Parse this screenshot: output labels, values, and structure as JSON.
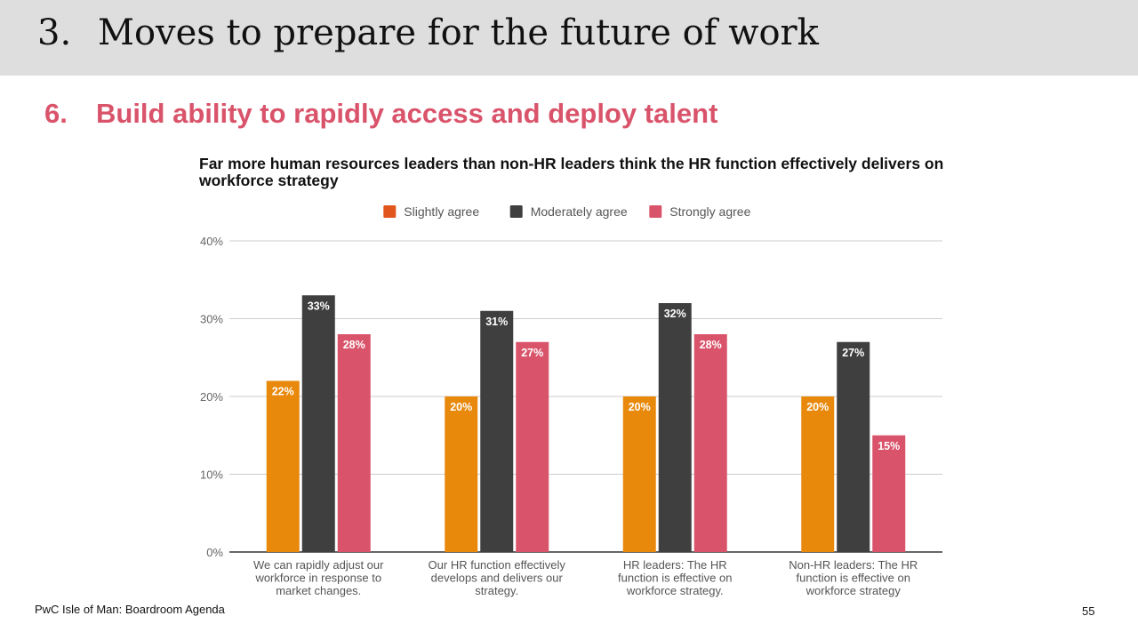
{
  "header": {
    "number": "3.",
    "title": "Moves to prepare for the future of work"
  },
  "subheader": {
    "number": "6.",
    "title": "Build ability to rapidly access and deploy talent"
  },
  "footer": {
    "left": "PwC Isle of Man: Boardroom Agenda",
    "page_number": "55"
  },
  "chart_data": {
    "type": "bar",
    "title": "Far more human resources leaders than non-HR leaders think the HR function effectively delivers on workforce strategy",
    "categories": [
      "We can rapidly adjust our workforce in response to market changes.",
      "Our HR function effectively develops and delivers our strategy.",
      "HR leaders: The HR function is effective on workforce strategy.",
      "Non-HR leaders: The HR function is effective on workforce strategy"
    ],
    "category_lines": [
      [
        "We can rapidly adjust our",
        "workforce in response to",
        "market changes."
      ],
      [
        "Our HR function effectively",
        "develops and delivers our",
        "strategy."
      ],
      [
        "HR leaders: The HR",
        "function is effective on",
        "workforce strategy."
      ],
      [
        "Non-HR leaders: The HR",
        "function is effective on",
        "workforce strategy"
      ]
    ],
    "series": [
      {
        "name": "Slightly agree",
        "color": "#e8890c",
        "legend_color": "#e0561c",
        "values": [
          22,
          20,
          20,
          20
        ]
      },
      {
        "name": "Moderately agree",
        "color": "#3f3f3f",
        "legend_color": "#3f3f3f",
        "values": [
          33,
          31,
          32,
          27
        ]
      },
      {
        "name": "Strongly agree",
        "color": "#d9546b",
        "legend_color": "#d9546b",
        "values": [
          28,
          27,
          28,
          15
        ]
      }
    ],
    "data_labels": [
      [
        "22%",
        "20%",
        "20%",
        "20%"
      ],
      [
        "33%",
        "31%",
        "32%",
        "27%"
      ],
      [
        "28%",
        "27%",
        "28%",
        "15%"
      ]
    ],
    "yticks": [
      0,
      10,
      20,
      30,
      40
    ],
    "ytick_labels": [
      "0%",
      "10%",
      "20%",
      "30%",
      "40%"
    ],
    "ylim": [
      0,
      40
    ],
    "xlabel": "",
    "ylabel": "",
    "grid": true,
    "legend_position": "top-center"
  }
}
